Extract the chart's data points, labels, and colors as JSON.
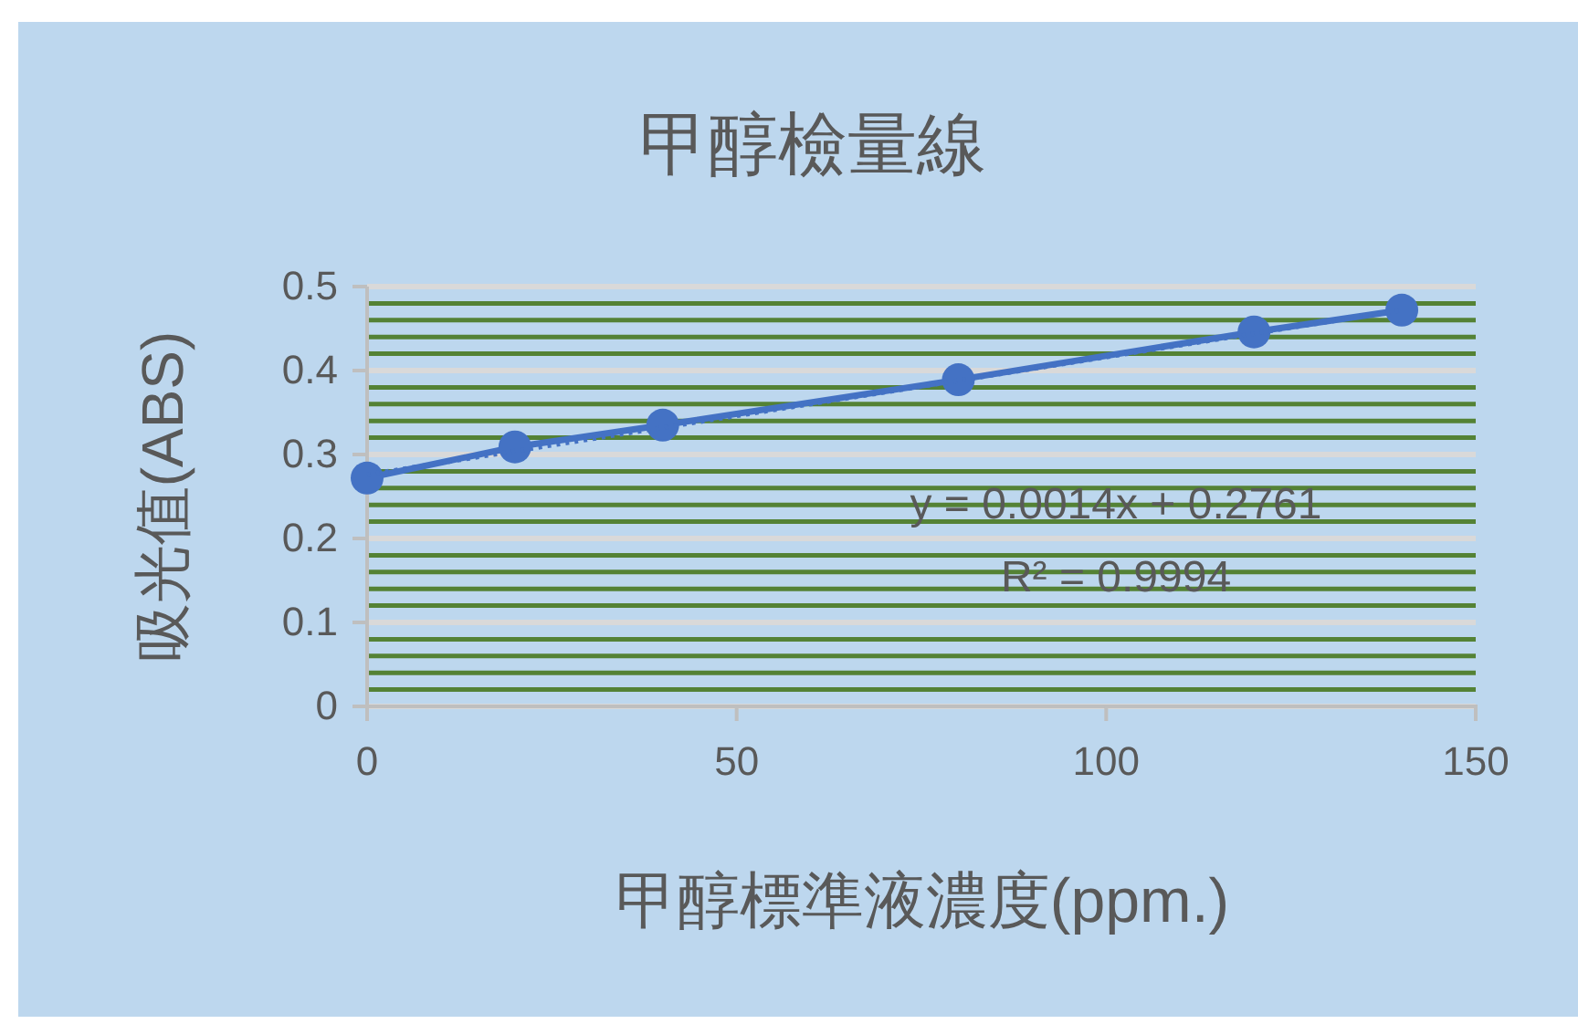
{
  "chart_data": {
    "type": "line",
    "title": "甲醇檢量線",
    "xlabel": "甲醇標準液濃度(ppm.)",
    "ylabel": "吸光值(ABS)",
    "xlim": [
      0,
      150
    ],
    "xticks": [
      0,
      50,
      100,
      150
    ],
    "ylim": [
      0,
      0.5
    ],
    "yticks": [
      0,
      {
        "value": 0.02,
        "label": null
      },
      {
        "value": 0.04,
        "label": null
      },
      {
        "value": 0.06,
        "label": null
      },
      {
        "value": 0.08,
        "label": null
      },
      0.1,
      {
        "value": 0.12,
        "label": null
      },
      {
        "value": 0.14,
        "label": null
      },
      {
        "value": 0.16,
        "label": null
      },
      {
        "value": 0.18,
        "label": null
      },
      0.2,
      {
        "value": 0.22,
        "label": null
      },
      {
        "value": 0.24,
        "label": null
      },
      {
        "value": 0.26,
        "label": null
      },
      {
        "value": 0.28,
        "label": null
      },
      0.3,
      {
        "value": 0.32,
        "label": null
      },
      {
        "value": 0.34,
        "label": null
      },
      {
        "value": 0.36,
        "label": null
      },
      {
        "value": 0.38,
        "label": null
      },
      0.4,
      {
        "value": 0.42,
        "label": null
      },
      {
        "value": 0.44,
        "label": null
      },
      {
        "value": 0.46,
        "label": null
      },
      {
        "value": 0.48,
        "label": null
      },
      0.5
    ],
    "grid": "y",
    "marker": "circle",
    "line_style": "solid",
    "series": [
      {
        "color": "#4472c4",
        "x": [
          0,
          20,
          40,
          80,
          120,
          140
        ],
        "values": [
          0.272,
          0.309,
          0.335,
          0.389,
          0.446,
          0.472
        ]
      },
      {
        "type": "line",
        "color": "#4472c4",
        "x": [
          0,
          140
        ],
        "values": [
          0.276,
          0.472
        ],
        "marker": "none",
        "line_style": "dotted"
      }
    ],
    "annotations": [
      "y = 0.0014x + 0.2761",
      "R² = 0.9994"
    ]
  }
}
